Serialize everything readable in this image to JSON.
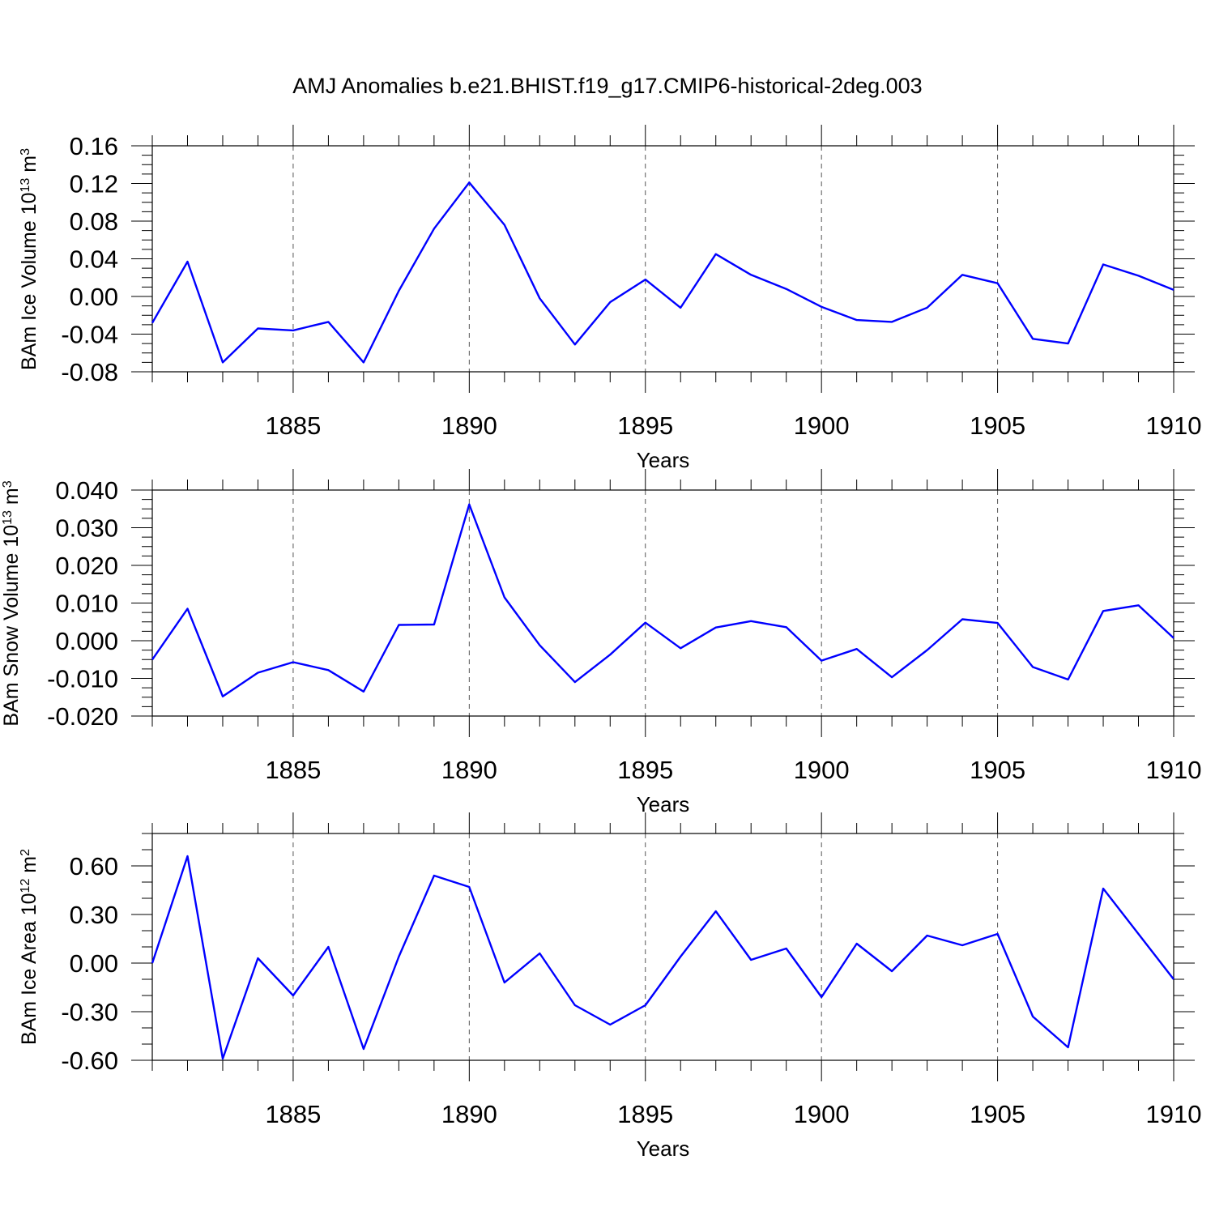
{
  "figure": {
    "title": "AMJ Anomalies b.e21.BHIST.f19_g17.CMIP6-historical-2deg.003"
  },
  "chart_data": [
    {
      "type": "line",
      "title": "AMJ Anomalies b.e21.BHIST.f19_g17.CMIP6-historical-2deg.003",
      "ylabel": {
        "base": "BAm Ice Volume 10",
        "exp": "13",
        "unit": " m",
        "unit_exp": "3"
      },
      "xlabel": "Years",
      "xlim": [
        1881,
        1910
      ],
      "ylim": [
        -0.08,
        0.16
      ],
      "yticks": [
        "-0.08",
        "-0.04",
        "0.00",
        "0.04",
        "0.08",
        "0.12",
        "0.16"
      ],
      "yminor_step": 0.01,
      "xticks": [
        1885,
        1890,
        1895,
        1900,
        1905,
        1910
      ],
      "grid": "vertical dashed at major x ticks",
      "color": "#0000ff",
      "x": [
        1881,
        1882,
        1883,
        1884,
        1885,
        1886,
        1887,
        1888,
        1889,
        1890,
        1891,
        1892,
        1893,
        1894,
        1895,
        1896,
        1897,
        1898,
        1899,
        1900,
        1901,
        1902,
        1903,
        1904,
        1905,
        1906,
        1907,
        1908,
        1909,
        1910
      ],
      "y": [
        -0.028,
        0.037,
        -0.07,
        -0.034,
        -0.036,
        -0.027,
        -0.07,
        0.006,
        0.072,
        0.121,
        0.076,
        -0.002,
        -0.051,
        -0.006,
        0.018,
        -0.012,
        0.045,
        0.023,
        0.008,
        -0.011,
        -0.025,
        -0.027,
        -0.012,
        0.023,
        0.014,
        -0.045,
        -0.05,
        0.034,
        0.022,
        0.007
      ]
    },
    {
      "type": "line",
      "ylabel": {
        "base": "BAm Snow Volume 10",
        "exp": "13",
        "unit": " m",
        "unit_exp": "3"
      },
      "xlabel": "Years",
      "xlim": [
        1881,
        1910
      ],
      "ylim": [
        -0.02,
        0.04
      ],
      "yticks": [
        "-0.020",
        "-0.010",
        "0.000",
        "0.010",
        "0.020",
        "0.030",
        "0.040"
      ],
      "yminor_step": 0.0025,
      "xticks": [
        1885,
        1890,
        1895,
        1900,
        1905,
        1910
      ],
      "grid": "vertical dashed at major x ticks",
      "color": "#0000ff",
      "x": [
        1881,
        1882,
        1883,
        1884,
        1885,
        1886,
        1887,
        1888,
        1889,
        1890,
        1891,
        1892,
        1893,
        1894,
        1895,
        1896,
        1897,
        1898,
        1899,
        1900,
        1901,
        1902,
        1903,
        1904,
        1905,
        1906,
        1907,
        1908,
        1909,
        1910
      ],
      "y": [
        -0.005,
        0.0085,
        -0.0148,
        -0.0085,
        -0.0057,
        -0.0078,
        -0.0135,
        0.0042,
        0.0043,
        0.0362,
        0.0115,
        -0.0012,
        -0.011,
        -0.0037,
        0.0048,
        -0.002,
        0.0035,
        0.0052,
        0.0036,
        -0.0053,
        -0.0022,
        -0.0097,
        -0.0025,
        0.0057,
        0.0047,
        -0.007,
        -0.0103,
        0.0079,
        0.0094,
        0.0007
      ]
    },
    {
      "type": "line",
      "ylabel": {
        "base": "BAm Ice Area 10",
        "exp": "12",
        "unit": " m",
        "unit_exp": "2"
      },
      "xlabel": "Years",
      "xlim": [
        1881,
        1910
      ],
      "ylim": [
        -0.6,
        0.8
      ],
      "yticks": [
        "-0.60",
        "-0.30",
        "0.00",
        "0.30",
        "0.60"
      ],
      "yticks_values": [
        -0.6,
        -0.3,
        0.0,
        0.3,
        0.6
      ],
      "yminor_step": 0.1,
      "xticks": [
        1885,
        1890,
        1895,
        1900,
        1905,
        1910
      ],
      "grid": "vertical dashed at major x ticks",
      "color": "#0000ff",
      "x": [
        1881,
        1882,
        1883,
        1884,
        1885,
        1886,
        1887,
        1888,
        1889,
        1890,
        1891,
        1892,
        1893,
        1894,
        1895,
        1896,
        1897,
        1898,
        1899,
        1900,
        1901,
        1902,
        1903,
        1904,
        1905,
        1906,
        1907,
        1908,
        1909,
        1910
      ],
      "y": [
        0.0,
        0.66,
        -0.59,
        0.03,
        -0.2,
        0.1,
        -0.53,
        0.04,
        0.54,
        0.47,
        -0.12,
        0.06,
        -0.26,
        -0.38,
        -0.26,
        0.04,
        0.32,
        0.02,
        0.09,
        -0.21,
        0.12,
        -0.05,
        0.17,
        0.11,
        0.18,
        -0.33,
        -0.52,
        0.46,
        0.18,
        -0.1
      ]
    }
  ]
}
